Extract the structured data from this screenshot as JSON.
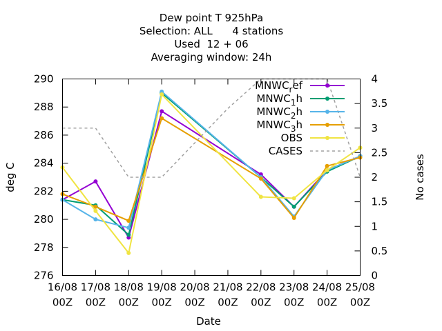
{
  "chart_data": {
    "type": "line",
    "title_lines": [
      "Dew point T 925hPa",
      "Selection: ALL      4 stations",
      "Used  12 + 06",
      "Averaging window: 24h"
    ],
    "xlabel": "Date",
    "ylabel": "deg C",
    "y2label": "No cases",
    "x_tick_labels": [
      [
        "16/08",
        "00Z"
      ],
      [
        "17/08",
        "00Z"
      ],
      [
        "18/08",
        "00Z"
      ],
      [
        "19/08",
        "00Z"
      ],
      [
        "20/08",
        "00Z"
      ],
      [
        "21/08",
        "00Z"
      ],
      [
        "22/08",
        "00Z"
      ],
      [
        "23/08",
        "00Z"
      ],
      [
        "24/08",
        "00Z"
      ],
      [
        "25/08",
        "00Z"
      ]
    ],
    "xlim": [
      0,
      9
    ],
    "ylim": [
      276,
      290
    ],
    "y_ticks": [
      "276",
      "278",
      "280",
      "282",
      "284",
      "286",
      "288",
      "290"
    ],
    "y2lim": [
      0,
      4
    ],
    "y2_ticks": [
      "0",
      "0.5",
      "1",
      "1.5",
      "2",
      "2.5",
      "3",
      "3.5",
      "4"
    ],
    "grid": false,
    "legend_position": "top-right",
    "series": [
      {
        "name": "MNWC_ref",
        "legend_parts": [
          [
            "MNWC",
            false
          ],
          [
            "r",
            true
          ],
          [
            "ef",
            false
          ]
        ],
        "color": "#9400d3",
        "axis": "y",
        "x": [
          0,
          1,
          2,
          3,
          6,
          7,
          8,
          9
        ],
        "values": [
          281.4,
          282.7,
          278.7,
          287.7,
          283.2,
          280.9,
          283.5,
          284.5
        ]
      },
      {
        "name": "MNWC_1h",
        "legend_parts": [
          [
            "MNWC",
            false
          ],
          [
            "1",
            true
          ],
          [
            "h",
            false
          ]
        ],
        "color": "#009e73",
        "axis": "y",
        "x": [
          0,
          1,
          2,
          3,
          6,
          7,
          8,
          9
        ],
        "values": [
          281.4,
          281.0,
          278.9,
          289.0,
          283.0,
          280.9,
          283.4,
          284.5
        ]
      },
      {
        "name": "MNWC_2h",
        "legend_parts": [
          [
            "MNWC",
            false
          ],
          [
            "2",
            true
          ],
          [
            "h",
            false
          ]
        ],
        "color": "#56b4e9",
        "axis": "y",
        "x": [
          0,
          1,
          2,
          3,
          6,
          7,
          8,
          9
        ],
        "values": [
          281.4,
          280.0,
          279.4,
          289.1,
          283.0,
          280.2,
          283.5,
          284.5
        ]
      },
      {
        "name": "MNWC_3h",
        "legend_parts": [
          [
            "MNWC",
            false
          ],
          [
            "3",
            true
          ],
          [
            "h",
            false
          ]
        ],
        "color": "#e69f00",
        "axis": "y",
        "x": [
          0,
          1,
          2,
          3,
          6,
          7,
          8,
          9
        ],
        "values": [
          281.8,
          280.9,
          279.9,
          287.2,
          282.9,
          280.1,
          283.8,
          284.4
        ]
      },
      {
        "name": "OBS",
        "legend_parts": [
          [
            "OBS",
            false
          ]
        ],
        "color": "#f0e442",
        "axis": "y",
        "x": [
          0,
          1,
          2,
          3,
          6,
          7,
          8,
          9
        ],
        "values": [
          283.7,
          280.6,
          277.6,
          288.9,
          281.6,
          281.5,
          283.5,
          285.1
        ]
      },
      {
        "name": "CASES",
        "legend_parts": [
          [
            "CASES",
            false
          ]
        ],
        "color": "#a0a0a0",
        "axis": "y2",
        "dashed": true,
        "x": [
          0,
          1,
          2,
          3,
          4,
          5,
          6,
          7,
          8,
          9
        ],
        "values": [
          3,
          3,
          2,
          2,
          2.7,
          3.4,
          4,
          4,
          4,
          2
        ]
      }
    ]
  }
}
